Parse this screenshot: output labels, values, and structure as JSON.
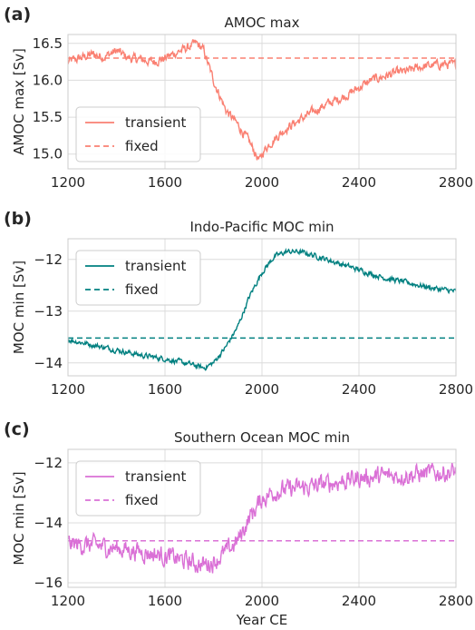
{
  "xlabel": "Year CE",
  "chart_data": [
    {
      "panel_label": "(a)",
      "title": "AMOC max",
      "type": "line",
      "ylabel": "AMOC max [Sv]",
      "xlim": [
        1200,
        2800
      ],
      "ylim": [
        14.8,
        16.62
      ],
      "xticks": [
        1200,
        1600,
        2000,
        2400,
        2800
      ],
      "xticklabels": [
        "1200",
        "1600",
        "2000",
        "2400",
        "2800"
      ],
      "yticks": [
        15.0,
        15.5,
        16.0,
        16.5
      ],
      "yticklabels": [
        "15.0",
        "15.5",
        "16.0",
        "16.5"
      ],
      "legend_position": "lower-left",
      "grid": true,
      "series": [
        {
          "name": "transient",
          "color": "#fa8072",
          "style": "solid",
          "noise": 0.05,
          "x": [
            1200,
            1250,
            1300,
            1350,
            1400,
            1450,
            1500,
            1550,
            1600,
            1650,
            1700,
            1730,
            1760,
            1800,
            1850,
            1900,
            1950,
            1990,
            2000,
            2020,
            2050,
            2100,
            2150,
            2200,
            2250,
            2300,
            2350,
            2400,
            2450,
            2500,
            2550,
            2600,
            2650,
            2700,
            2750,
            2800
          ],
          "y": [
            16.25,
            16.3,
            16.35,
            16.32,
            16.4,
            16.3,
            16.28,
            16.25,
            16.3,
            16.38,
            16.45,
            16.5,
            16.4,
            16.0,
            15.6,
            15.4,
            15.15,
            14.9,
            15.0,
            15.1,
            15.2,
            15.35,
            15.45,
            15.55,
            15.65,
            15.72,
            15.8,
            15.9,
            16.0,
            16.05,
            16.1,
            16.12,
            16.18,
            16.2,
            16.22,
            16.2
          ]
        },
        {
          "name": "fixed",
          "color": "#fa8072",
          "style": "dashed",
          "noise": 0,
          "x": [
            1200,
            2800
          ],
          "y": [
            16.3,
            16.3
          ]
        }
      ]
    },
    {
      "panel_label": "(b)",
      "title": "Indo-Pacific MOC min",
      "type": "line",
      "ylabel": "MOC min [Sv]",
      "xlim": [
        1200,
        2800
      ],
      "ylim": [
        -14.25,
        -11.6
      ],
      "xticks": [
        1200,
        1600,
        2000,
        2400,
        2800
      ],
      "xticklabels": [
        "1200",
        "1600",
        "2000",
        "2400",
        "2800"
      ],
      "yticks": [
        -14,
        -13,
        -12
      ],
      "yticklabels": [
        "−14",
        "−13",
        "−12"
      ],
      "legend_position": "upper-left",
      "grid": true,
      "series": [
        {
          "name": "transient",
          "color": "#008080",
          "style": "solid",
          "noise": 0.04,
          "x": [
            1200,
            1300,
            1400,
            1500,
            1600,
            1700,
            1760,
            1800,
            1850,
            1900,
            1950,
            2000,
            2050,
            2100,
            2150,
            2200,
            2300,
            2400,
            2500,
            2600,
            2700,
            2800
          ],
          "y": [
            -13.55,
            -13.65,
            -13.75,
            -13.85,
            -13.92,
            -14.02,
            -14.1,
            -14.0,
            -13.7,
            -13.3,
            -12.7,
            -12.25,
            -11.95,
            -11.85,
            -11.85,
            -11.9,
            -12.05,
            -12.2,
            -12.35,
            -12.45,
            -12.55,
            -12.62
          ]
        },
        {
          "name": "fixed",
          "color": "#008080",
          "style": "dashed",
          "noise": 0,
          "x": [
            1200,
            2800
          ],
          "y": [
            -13.52,
            -13.52
          ]
        }
      ]
    },
    {
      "panel_label": "(c)",
      "title": "Southern Ocean MOC min",
      "type": "line",
      "ylabel": "MOC min [Sv]",
      "xlim": [
        1200,
        2800
      ],
      "ylim": [
        -16.15,
        -11.55
      ],
      "xticks": [
        1200,
        1600,
        2000,
        2400,
        2800
      ],
      "xticklabels": [
        "1200",
        "1600",
        "2000",
        "2400",
        "2800"
      ],
      "yticks": [
        -16,
        -14,
        -12
      ],
      "yticklabels": [
        "−16",
        "−14",
        "−12"
      ],
      "legend_position": "upper-left",
      "grid": true,
      "series": [
        {
          "name": "transient",
          "color": "#da70d6",
          "style": "solid",
          "noise": 0.25,
          "x": [
            1200,
            1300,
            1400,
            1500,
            1600,
            1700,
            1750,
            1800,
            1850,
            1900,
            1950,
            2000,
            2050,
            2100,
            2200,
            2300,
            2400,
            2500,
            2600,
            2700,
            2800
          ],
          "y": [
            -14.7,
            -14.75,
            -14.85,
            -14.95,
            -15.1,
            -15.3,
            -15.4,
            -15.3,
            -15.0,
            -14.6,
            -13.8,
            -13.2,
            -12.95,
            -12.9,
            -12.8,
            -12.65,
            -12.5,
            -12.45,
            -12.4,
            -12.35,
            -12.3
          ]
        },
        {
          "name": "fixed",
          "color": "#da70d6",
          "style": "dashed",
          "noise": 0,
          "x": [
            1200,
            2800
          ],
          "y": [
            -14.6,
            -14.6
          ]
        }
      ]
    }
  ]
}
